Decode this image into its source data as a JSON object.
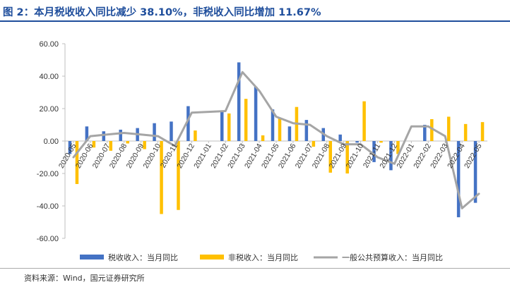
{
  "header": {
    "title": "图 2：本月税收收入同比减少 38.10%，非税收入同比增加 11.67%"
  },
  "footer": {
    "source": "资料来源：Wind，国元证券研究所"
  },
  "colors": {
    "tax": "#4472c4",
    "nontax": "#ffc000",
    "total": "#a5a5a5",
    "title": "#1f4e9c"
  },
  "chart_data": {
    "type": "bar",
    "categories": [
      "2020-05",
      "2020-06",
      "2020-07",
      "2020-08",
      "2020-09",
      "2020-10",
      "2020-11",
      "2020-12",
      "2021-01",
      "2021-02",
      "2021-03",
      "2021-04",
      "2021-05",
      "2021-06",
      "2021-07",
      "2021-08",
      "2021-09",
      "2021-10",
      "2021-11",
      "2021-12",
      "2022-01",
      "2022-02",
      "2022-03",
      "2022-04",
      "2022-05"
    ],
    "tick_labels": [
      "2020-05",
      "2020-06",
      "2020-07",
      "2020-08",
      "2020-09",
      "2020-10",
      "2020-11",
      "2020-12",
      "2021-01",
      "2021-02",
      "2021-03",
      "2021-04",
      "2021-05",
      "2021-06",
      "2021-07",
      "2021-08",
      "2021-09",
      "2021-10",
      "2021-11",
      "2021-12",
      "2022-01",
      "2022-02",
      "2022-03",
      "2022-04",
      "2022-05"
    ],
    "series": [
      {
        "name": "税收收入：当月同比",
        "kind": "bar",
        "values": [
          -8.0,
          9.0,
          6.0,
          7.0,
          8.0,
          11.0,
          12.0,
          21.5,
          null,
          18.0,
          48.5,
          33.5,
          19.5,
          9.0,
          13.0,
          8.0,
          4.0,
          -1.0,
          -13.0,
          -18.0,
          null,
          10.0,
          null,
          -47.0,
          -38.1
        ]
      },
      {
        "name": "非税收入：当月同比",
        "kind": "bar",
        "values": [
          -26.5,
          -4.0,
          -6.0,
          -1.5,
          -5.0,
          -45.0,
          -42.5,
          6.5,
          null,
          17.0,
          26.0,
          3.5,
          14.0,
          21.0,
          -3.5,
          -19.5,
          -20.0,
          24.5,
          -1.0,
          -8.0,
          null,
          13.5,
          15.0,
          10.5,
          11.67
        ]
      },
      {
        "name": "一般公共预算收入：当月同比",
        "kind": "line",
        "values": [
          -10.0,
          3.0,
          4.0,
          5.0,
          4.0,
          3.0,
          -3.0,
          17.5,
          18.0,
          18.5,
          42.5,
          31.0,
          15.0,
          11.0,
          10.0,
          3.0,
          -2.0,
          -2.0,
          -10.0,
          -14.0,
          9.0,
          9.0,
          3.0,
          -41.5,
          -32.5
        ]
      }
    ],
    "y_ticks": [
      "60.00",
      "40.00",
      "20.00",
      "0.00",
      "-20.00",
      "-40.00",
      "-60.00"
    ],
    "ylim": [
      -60,
      60
    ],
    "grid": false,
    "legend": "bottom"
  }
}
